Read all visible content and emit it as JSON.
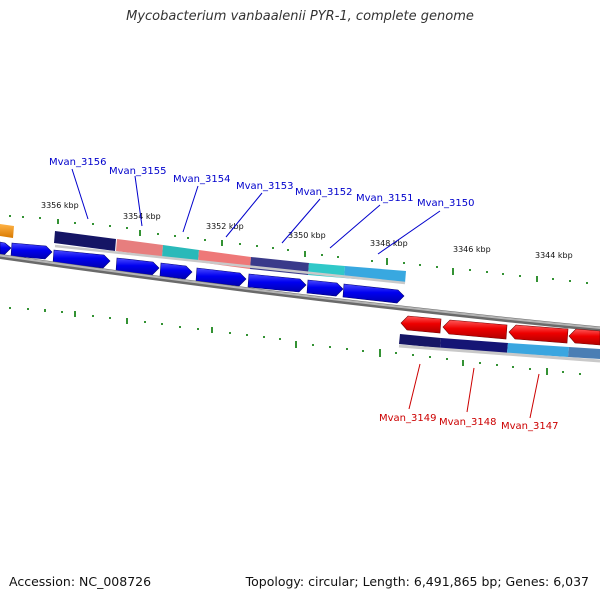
{
  "title": "Mycobacterium vanbaalenii PYR-1, complete genome",
  "accession": "Accession: NC_008726",
  "summary": "Topology: circular; Length: 6,491,865 bp; Genes: 6,037",
  "colors": {
    "forward_label": "#0000cc",
    "reverse_label": "#cc0000",
    "forward_cds": "#0000ee",
    "reverse_cds": "#ee0000",
    "tick": "#007700",
    "backbone": "#808080"
  },
  "scale_labels": [
    "3356 kbp",
    "3354 kbp",
    "3352 kbp",
    "3350 kbp",
    "3348 kbp",
    "3346 kbp",
    "3344 kbp"
  ],
  "forward_gene_labels": [
    "Mvan_3156",
    "Mvan_3155",
    "Mvan_3154",
    "Mvan_3153",
    "Mvan_3152",
    "Mvan_3151",
    "Mvan_3150"
  ],
  "reverse_gene_labels": [
    "Mvan_3149",
    "Mvan_3148",
    "Mvan_3147"
  ]
}
